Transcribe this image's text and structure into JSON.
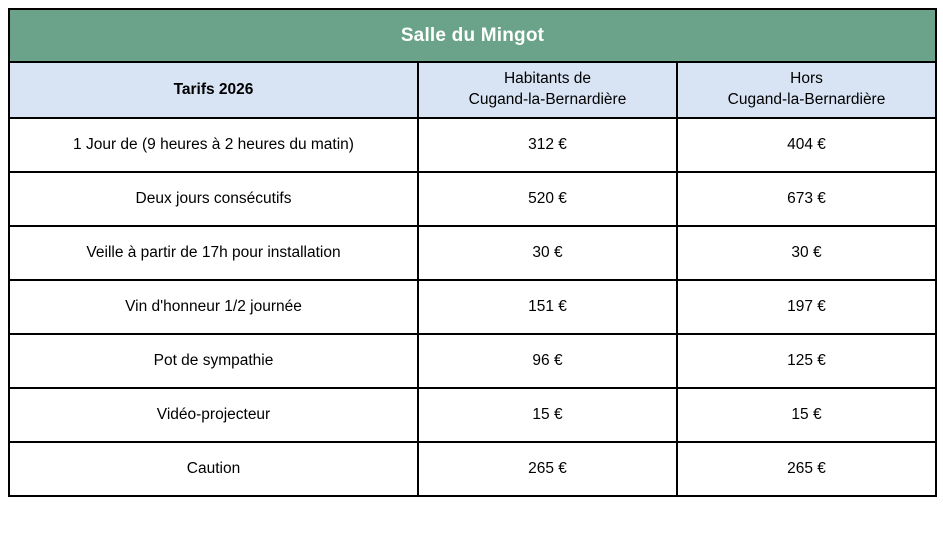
{
  "colors": {
    "title_bar_green": "#6AA38A",
    "subheader_blue": "#D8E4F4",
    "tarifs_text_green": "#6CA68C",
    "border": "#000000",
    "title_text": "#FFFFFF",
    "body_text": "#000000"
  },
  "table": {
    "title": "Salle du Mingot",
    "subheader": {
      "tarifs_label": "Tarifs 2026",
      "resident_column": "Habitants de\nCugand-la-Bernardière",
      "non_resident_column": "Hors\nCugand-la-Bernardière"
    },
    "rows": [
      {
        "label": "1 Jour de (9 heures à 2 heures du matin)",
        "resident_price": "312 €",
        "non_resident_price": "404 €"
      },
      {
        "label": "Deux jours consécutifs",
        "resident_price": "520 €",
        "non_resident_price": "673 €"
      },
      {
        "label": "Veille à partir de 17h pour installation",
        "resident_price": "30 €",
        "non_resident_price": "30 €"
      },
      {
        "label": "Vin d'honneur 1/2 journée",
        "resident_price": "151 €",
        "non_resident_price": "197 €"
      },
      {
        "label": "Pot de sympathie",
        "resident_price": "96 €",
        "non_resident_price": "125 €"
      },
      {
        "label": "Vidéo-projecteur",
        "resident_price": "15 €",
        "non_resident_price": "15 €"
      },
      {
        "label": "Caution",
        "resident_price": "265 €",
        "non_resident_price": "265 €"
      }
    ]
  }
}
